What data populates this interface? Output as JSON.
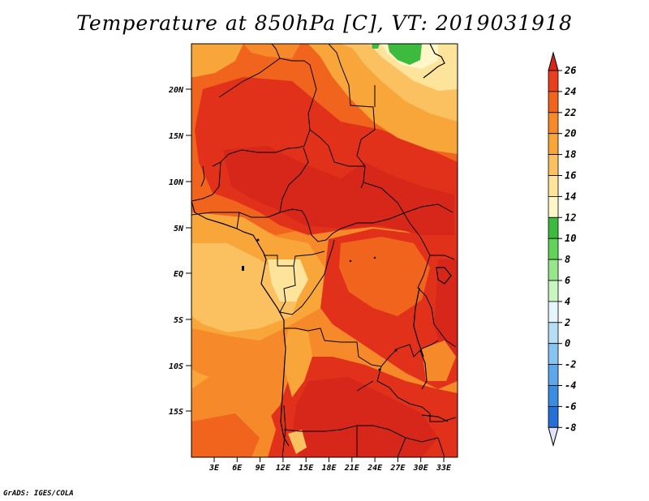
{
  "title": "Temperature at 850hPa [C], VT: 2019031918",
  "credit": "GrADS: IGES/COLA",
  "map": {
    "lat_labels": [
      "20N",
      "15N",
      "10N",
      "5N",
      "EQ",
      "5S",
      "10S",
      "15S"
    ],
    "lon_labels": [
      "3E",
      "6E",
      "9E",
      "12E",
      "15E",
      "18E",
      "21E",
      "24E",
      "27E",
      "30E",
      "33E"
    ]
  },
  "colorbar": {
    "labels": [
      "26",
      "24",
      "22",
      "20",
      "18",
      "16",
      "14",
      "12",
      "10",
      "8",
      "6",
      "4",
      "2",
      "0",
      "-2",
      "-4",
      "-6",
      "-8"
    ],
    "colors": [
      "#d7261a",
      "#e8401f",
      "#f0641d",
      "#f68a2b",
      "#f8a63a",
      "#fbc060",
      "#fde49a",
      "#fff7c8",
      "#3dbb3f",
      "#61d25a",
      "#98e68c",
      "#c8f5c0",
      "#e4f5fb",
      "#b7ddf5",
      "#87c4f2",
      "#5da7ea",
      "#3a8ce0",
      "#2470d8",
      "#1655c4",
      "#0b3aa8",
      "#052481"
    ],
    "arrow_top_color": "#d7261a",
    "arrow_bottom_color": "#e2e2f8"
  }
}
